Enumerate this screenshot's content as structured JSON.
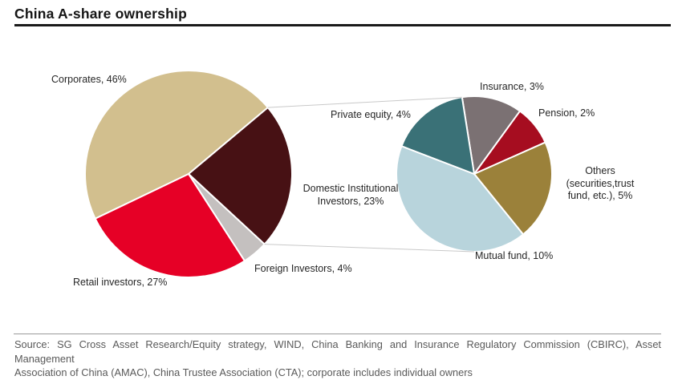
{
  "title": "China A-share ownership",
  "source": {
    "line1": "Source: SG Cross Asset Research/Equity strategy, WIND, China Banking and Insurance Regulatory Commission (CBIRC), Asset Management",
    "line2": "Association of China (AMAC), China Trustee Association (CTA); corporate includes individual owners"
  },
  "colors": {
    "slice_border": "#ffffff",
    "connector_line": "#c9c9c9",
    "title_rule": "#1a1a1a",
    "source_text": "#595959"
  },
  "chart_data": [
    {
      "type": "pie",
      "name": "main-pie",
      "title": "China A-share ownership",
      "units": "percent",
      "start_angle_deg": -115.6,
      "direction": "clockwise",
      "slices": [
        {
          "label": "Corporates",
          "value": 46,
          "display": "Corporates,  46%",
          "color": "#d2bf8e"
        },
        {
          "label": "Domestic Institutional Investors",
          "value": 23,
          "display": "Domestic Institutional\nInvestors,  23%",
          "color": "#471114"
        },
        {
          "label": "Foreign Investors",
          "value": 4,
          "display": "Foreign Investors,  4%",
          "color": "#c4c0bf"
        },
        {
          "label": "Retail investors",
          "value": 27,
          "display": "Retail investors,  27%",
          "color": "#e60026"
        }
      ]
    },
    {
      "type": "pie",
      "name": "breakdown-pie",
      "title": "Domestic Institutional Investors breakdown",
      "parent_slice": "Domestic Institutional Investors",
      "units": "percent",
      "start_angle_deg": -9,
      "direction": "clockwise",
      "slices": [
        {
          "label": "Insurance",
          "value": 3,
          "display": "Insurance,  3%",
          "color": "#7b7173"
        },
        {
          "label": "Pension",
          "value": 2,
          "display": "Pension,  2%",
          "color": "#a60d20"
        },
        {
          "label": "Others (securities, trust fund, etc.)",
          "value": 5,
          "display": "Others\n(securities,trust\nfund,  etc.),  5%",
          "color": "#9b813a"
        },
        {
          "label": "Mutual fund",
          "value": 10,
          "display": "Mutual fund,  10%",
          "color": "#b8d4dc"
        },
        {
          "label": "Private equity",
          "value": 4,
          "display": "Private equity,  4%",
          "color": "#3a7177"
        }
      ]
    }
  ]
}
